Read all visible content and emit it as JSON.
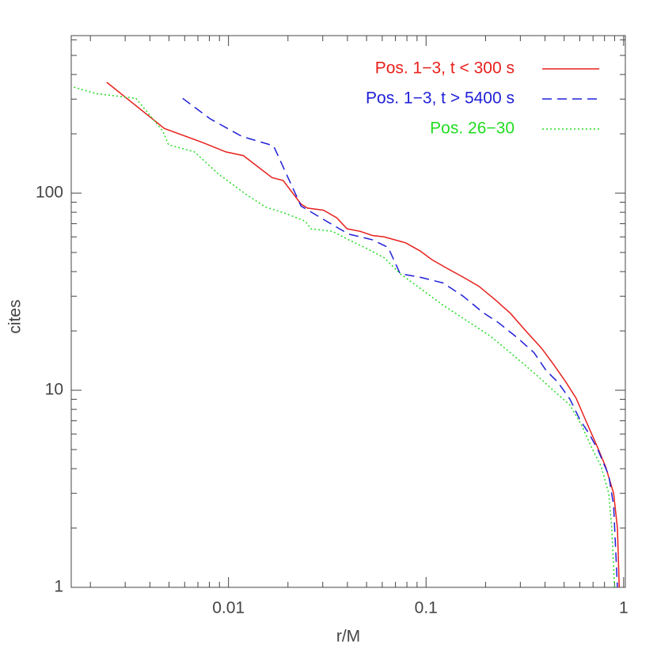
{
  "chart_data": {
    "type": "line",
    "xlabel": "r/M",
    "ylabel": "cites",
    "xscale": "log",
    "yscale": "log",
    "xlim": [
      0.0016,
      1.02
    ],
    "ylim": [
      1,
      630
    ],
    "xticks": [
      0.01,
      0.1,
      1
    ],
    "yticks": [
      1,
      10,
      100
    ],
    "xminorticks": [
      0.002,
      0.003,
      0.004,
      0.005,
      0.006,
      0.007,
      0.008,
      0.009,
      0.02,
      0.03,
      0.04,
      0.05,
      0.06,
      0.07,
      0.08,
      0.09,
      0.2,
      0.3,
      0.4,
      0.5,
      0.6,
      0.7,
      0.8,
      0.9
    ],
    "yminorticks": [
      2,
      3,
      4,
      5,
      6,
      7,
      8,
      9,
      20,
      30,
      40,
      50,
      60,
      70,
      80,
      90,
      200,
      300,
      400,
      500,
      600
    ],
    "legend": "upper right",
    "series": [
      {
        "name": "Pos. 1−3, t < 300 s",
        "color": "#e8201c",
        "line_style": "solid",
        "x": [
          0.00242,
          0.00474,
          0.00738,
          0.0097,
          0.0119,
          0.0166,
          0.0189,
          0.0233,
          0.0251,
          0.0302,
          0.0353,
          0.0398,
          0.0465,
          0.0535,
          0.0614,
          0.0787,
          0.093,
          0.107,
          0.128,
          0.154,
          0.185,
          0.222,
          0.267,
          0.32,
          0.385,
          0.44,
          0.51,
          0.575,
          0.64,
          0.74,
          0.81,
          0.89,
          0.93,
          0.95
        ],
        "values": [
          365,
          213,
          181,
          162,
          155,
          120,
          116,
          88,
          84,
          82,
          75,
          66,
          64,
          61,
          60,
          56,
          51,
          46,
          41.5,
          37.5,
          33.7,
          29,
          24.6,
          20,
          16.3,
          13.6,
          11,
          9.1,
          7.1,
          5.1,
          4.1,
          3,
          2,
          1
        ]
      },
      {
        "name": "Pos. 1−3, t > 5400 s",
        "color": "#2020d8",
        "line_style": "dashed",
        "x": [
          0.00586,
          0.0081,
          0.0117,
          0.0169,
          0.0233,
          0.0307,
          0.0405,
          0.0535,
          0.0643,
          0.0739,
          0.093,
          0.122,
          0.154,
          0.194,
          0.233,
          0.293,
          0.352,
          0.405,
          0.464,
          0.535,
          0.6,
          0.67,
          0.74,
          0.84,
          0.89,
          0.93
        ],
        "values": [
          303,
          238,
          194,
          174,
          86,
          73,
          62,
          58,
          53,
          39,
          37.5,
          35,
          30,
          24.8,
          22,
          18.3,
          15.5,
          12.6,
          11,
          9,
          7.1,
          6,
          5,
          3.7,
          2.6,
          1
        ]
      },
      {
        "name": "Pos. 26−30",
        "color": "#22dd22",
        "line_style": "dotted",
        "x": [
          0.00165,
          0.00213,
          0.0034,
          0.00465,
          0.00497,
          0.00673,
          0.0089,
          0.0122,
          0.0154,
          0.0194,
          0.0245,
          0.0261,
          0.0337,
          0.0405,
          0.049,
          0.0614,
          0.0739,
          0.093,
          0.122,
          0.161,
          0.212,
          0.28,
          0.367,
          0.44,
          0.535,
          0.61,
          0.69,
          0.77,
          0.84,
          0.87,
          0.9
        ],
        "values": [
          345,
          320,
          303,
          207,
          176,
          162,
          125,
          99,
          85,
          79,
          72,
          66,
          64,
          58,
          53,
          47,
          39,
          33,
          27,
          22.5,
          18.8,
          14.9,
          11.8,
          10,
          8.4,
          6.7,
          5.1,
          4.1,
          3,
          2,
          1
        ]
      }
    ]
  }
}
